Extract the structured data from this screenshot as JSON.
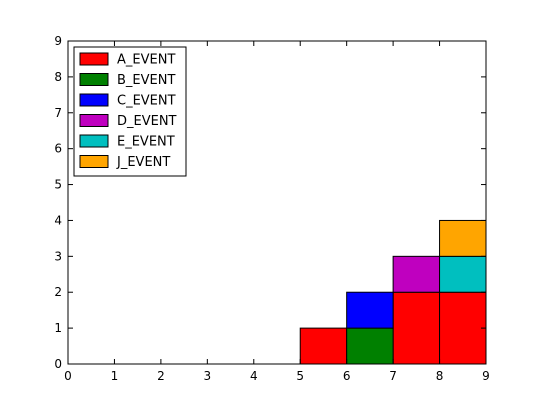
{
  "chart_data": {
    "type": "bar",
    "stacked": true,
    "x_ticks": [
      0,
      1,
      2,
      3,
      4,
      5,
      6,
      7,
      8,
      9
    ],
    "y_ticks": [
      0,
      1,
      2,
      3,
      4,
      5,
      6,
      7,
      8,
      9
    ],
    "xlim": [
      0,
      9
    ],
    "ylim": [
      0,
      9
    ],
    "grid": false,
    "legend_position": "top-left",
    "bin_width": 1,
    "series": [
      {
        "name": "A_EVENT",
        "color": "#ff0000",
        "bins": [
          5,
          7,
          8
        ],
        "values": [
          1,
          2,
          2
        ]
      },
      {
        "name": "B_EVENT",
        "color": "#008000",
        "bins": [
          6
        ],
        "values": [
          1
        ]
      },
      {
        "name": "C_EVENT",
        "color": "#0000ff",
        "bins": [
          6
        ],
        "values": [
          1
        ]
      },
      {
        "name": "D_EVENT",
        "color": "#bf00bf",
        "bins": [
          7
        ],
        "values": [
          1
        ]
      },
      {
        "name": "E_EVENT",
        "color": "#00bfbf",
        "bins": [
          8
        ],
        "values": [
          1
        ]
      },
      {
        "name": "J_EVENT",
        "color": "#ffa500",
        "bins": [
          8
        ],
        "values": [
          1
        ]
      }
    ]
  }
}
